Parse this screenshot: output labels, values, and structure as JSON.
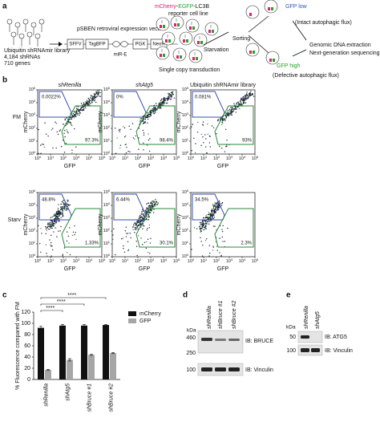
{
  "panel_a": {
    "label": "a",
    "library": [
      "Ubiquitin shRNAmir library",
      "4,184 shRNAs",
      "710 genes"
    ],
    "vector_title": "pSBEN retroviral expression vector",
    "vector_parts": [
      "SFFV",
      "TagBFP",
      "miR-E",
      "PGK",
      "NeoR"
    ],
    "reporter": {
      "mcherry": "mCherry",
      "dash1": "-",
      "egfp": "EGFP",
      "lc3b": "-LC3B",
      "line2": "reporter cell line"
    },
    "transduction": "Single copy transduction",
    "starvation": "Starvation",
    "sorting": "Sorting",
    "gfp_low": "GFP low",
    "intact": "(Intact autophagic flux)",
    "gfp_high": "GFP high",
    "defective": "(Defective autophagic flux)",
    "readout": [
      "Genomic DNA extraction",
      "Next-generation sequencing"
    ]
  },
  "panel_b": {
    "label": "b",
    "columns": [
      "shRenilla",
      "shAtg5",
      "Ubiquitin shRNAmir library"
    ],
    "rows": [
      "FM",
      "Starv"
    ],
    "y_label": "mCherry",
    "x_label": "GFP",
    "tick_base": "10",
    "tick_exponents": [
      0,
      1,
      2,
      3,
      4,
      5
    ],
    "gate_low": [
      [
        "0.0022%",
        "0%",
        "0.081%"
      ],
      [
        "48.8%",
        "6.44%",
        "34.5%"
      ]
    ],
    "gate_high": [
      [
        "97.3%",
        "98.4%",
        "93%"
      ],
      [
        "1.33%",
        "30.1%",
        "2.3%"
      ]
    ]
  },
  "chart_data": {
    "type": "bar",
    "panel_label": "c",
    "y_label": "% Fluorescence compared with FM",
    "categories": [
      "shRenilla",
      "shAtg5",
      "shBruce #1",
      "shBruce #2"
    ],
    "series": [
      {
        "name": "mCherry",
        "color": "#111111",
        "values": [
          92,
          96,
          96,
          97
        ],
        "errors": [
          3,
          2,
          2,
          1
        ]
      },
      {
        "name": "GFP",
        "color": "#a6a6a6",
        "values": [
          17,
          35,
          44,
          47
        ],
        "errors": [
          1,
          2,
          1,
          1
        ]
      }
    ],
    "ylim": [
      0,
      120
    ],
    "yticks": [
      0,
      20,
      40,
      60,
      80,
      100,
      120
    ],
    "significance": [
      "****",
      "****",
      "****"
    ]
  },
  "panel_d": {
    "label": "d",
    "lanes": [
      "shRenilla",
      "shBruce #1",
      "shBruce #2"
    ],
    "unit": "kDa",
    "markers": [
      "460",
      "250",
      "100"
    ],
    "blots": [
      "IB: BRUCE",
      "IB: Vinculin"
    ]
  },
  "panel_e": {
    "label": "e",
    "lanes": [
      "shRenilla",
      "shAtg5"
    ],
    "unit": "kDa",
    "markers": [
      "50",
      "100"
    ],
    "blots": [
      "IB: ATG5",
      "IB: Vinculin"
    ]
  }
}
